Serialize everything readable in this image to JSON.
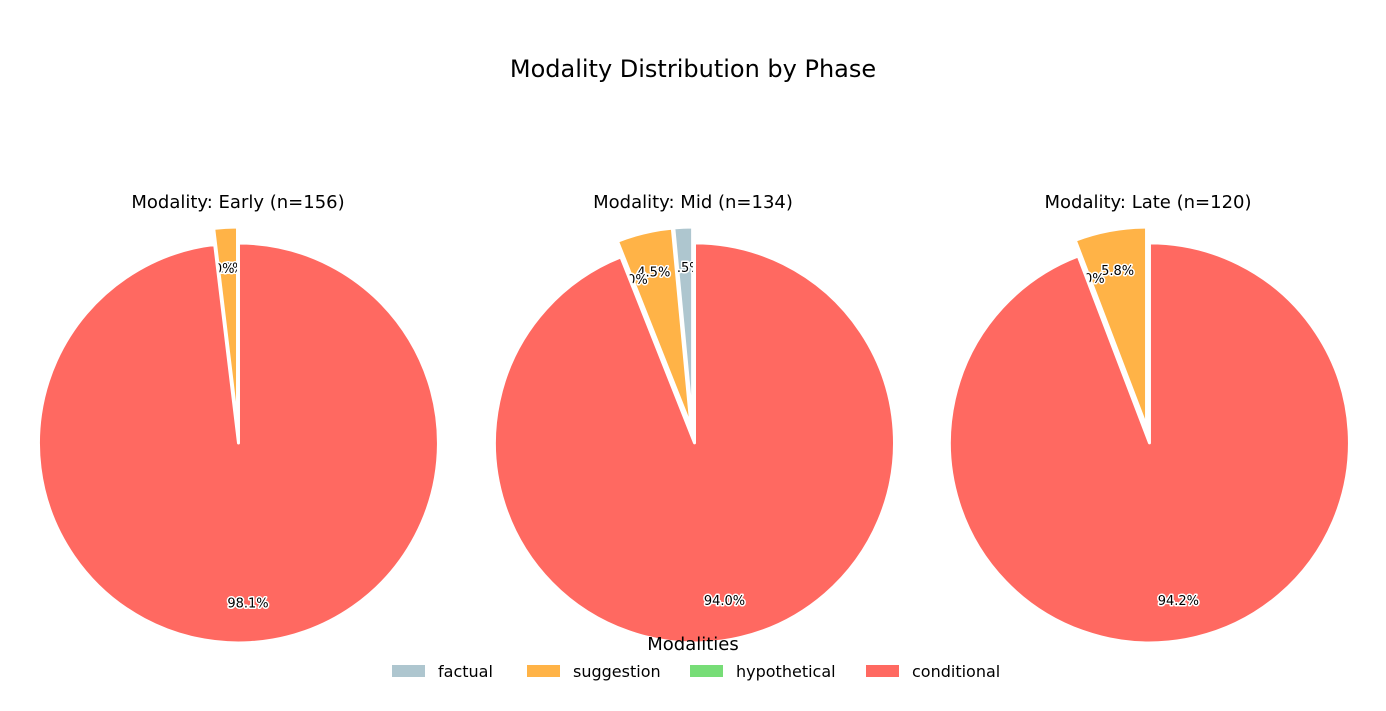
{
  "chart_data": {
    "type": "pie",
    "title": "Modality Distribution by Phase",
    "legend": {
      "title": "Modalities",
      "placement": "bottom-center",
      "entries": [
        "factual",
        "suggestion",
        "hypothetical",
        "conditional"
      ]
    },
    "colors": {
      "factual": "#aec6cf",
      "suggestion": "#ffb347",
      "hypothetical": "#77dd77",
      "conditional": "#ff6961"
    },
    "pies": [
      {
        "title": "Modality: Early (n=156)",
        "slices": [
          {
            "label": "factual",
            "value": 0.0,
            "display": "0.0%"
          },
          {
            "label": "suggestion",
            "value": 1.9,
            "display": "1.9%"
          },
          {
            "label": "hypothetical",
            "value": 0.0,
            "display": "0.0%"
          },
          {
            "label": "conditional",
            "value": 98.1,
            "display": "98.1%"
          }
        ]
      },
      {
        "title": "Modality: Mid (n=134)",
        "slices": [
          {
            "label": "factual",
            "value": 1.5,
            "display": "1.5%"
          },
          {
            "label": "suggestion",
            "value": 4.5,
            "display": "4.5%"
          },
          {
            "label": "hypothetical",
            "value": 0.0,
            "display": "0.0%"
          },
          {
            "label": "conditional",
            "value": 94.0,
            "display": "94.0%"
          }
        ]
      },
      {
        "title": "Modality: Late (n=120)",
        "slices": [
          {
            "label": "factual",
            "value": 0.0,
            "display": "0.0%"
          },
          {
            "label": "suggestion",
            "value": 5.8,
            "display": "5.8%"
          },
          {
            "label": "hypothetical",
            "value": 0.0,
            "display": "0.0%"
          },
          {
            "label": "conditional",
            "value": 94.2,
            "display": "94.2%"
          }
        ]
      }
    ]
  }
}
